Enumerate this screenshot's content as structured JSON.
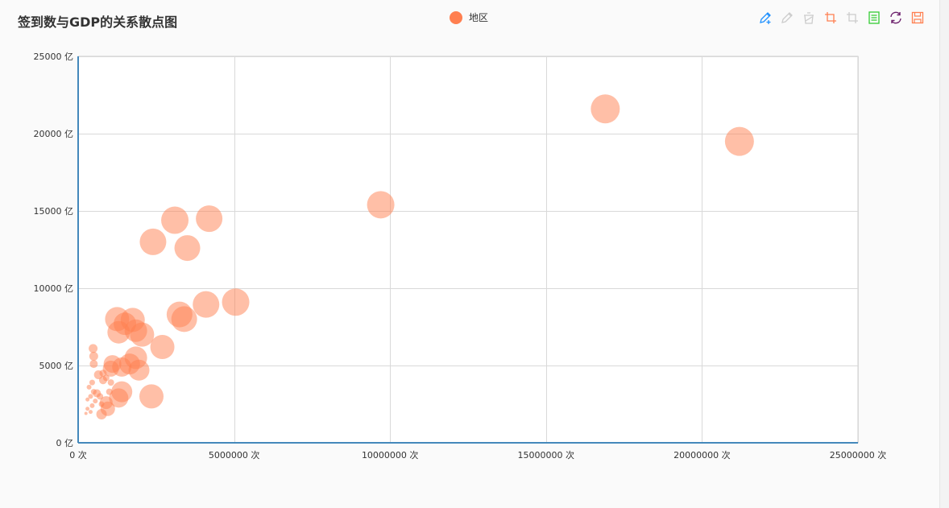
{
  "title": "签到数与GDP的关系散点图",
  "legend": {
    "label": "地区",
    "color": "#ff7f50"
  },
  "toolbox": {
    "items": [
      {
        "name": "mark-icon",
        "color": "#1e90ff",
        "enabled": true
      },
      {
        "name": "mark-undo-icon",
        "color": "#cccccc",
        "enabled": false
      },
      {
        "name": "mark-clear-icon",
        "color": "#cccccc",
        "enabled": false
      },
      {
        "name": "zoom-icon",
        "color": "#ff7f50",
        "enabled": true
      },
      {
        "name": "zoom-back-icon",
        "color": "#cccccc",
        "enabled": false
      },
      {
        "name": "data-view-icon",
        "color": "#32cd32",
        "enabled": true
      },
      {
        "name": "restore-icon",
        "color": "#6b1f6b",
        "enabled": true
      },
      {
        "name": "save-image-icon",
        "color": "#ff7f50",
        "enabled": true
      }
    ]
  },
  "chart_data": {
    "type": "scatter",
    "title": "签到数与GDP的关系散点图",
    "series": [
      {
        "name": "地区",
        "color": "#ff7f50",
        "points": [
          [
            21200000,
            19500,
            36
          ],
          [
            16900000,
            21600,
            36
          ],
          [
            9700000,
            15400,
            34
          ],
          [
            4200000,
            14500,
            33
          ],
          [
            3100000,
            14400,
            34
          ],
          [
            2400000,
            13000,
            33
          ],
          [
            3500000,
            12600,
            32
          ],
          [
            5050000,
            9100,
            34
          ],
          [
            4100000,
            8950,
            33
          ],
          [
            3250000,
            8300,
            32
          ],
          [
            3400000,
            8000,
            32
          ],
          [
            1250000,
            8000,
            30
          ],
          [
            1750000,
            7950,
            30
          ],
          [
            1500000,
            7700,
            28
          ],
          [
            1850000,
            7250,
            28
          ],
          [
            2050000,
            7000,
            30
          ],
          [
            1300000,
            7150,
            28
          ],
          [
            2700000,
            6200,
            30
          ],
          [
            1850000,
            5500,
            28
          ],
          [
            1650000,
            5100,
            26
          ],
          [
            1100000,
            5100,
            22
          ],
          [
            1400000,
            4900,
            24
          ],
          [
            1950000,
            4700,
            26
          ],
          [
            1050000,
            4800,
            20
          ],
          [
            1400000,
            3300,
            26
          ],
          [
            2350000,
            3000,
            30
          ],
          [
            1300000,
            2900,
            24
          ],
          [
            900000,
            2600,
            16
          ],
          [
            950000,
            2200,
            18
          ],
          [
            750000,
            1850,
            13
          ],
          [
            600000,
            3200,
            10
          ],
          [
            480000,
            6100,
            11
          ],
          [
            500000,
            5600,
            11
          ],
          [
            500000,
            5100,
            10
          ],
          [
            650000,
            4400,
            11
          ],
          [
            800000,
            4500,
            9
          ],
          [
            800000,
            4050,
            10
          ],
          [
            900000,
            4200,
            8
          ],
          [
            1050000,
            3900,
            8
          ],
          [
            450000,
            3900,
            7
          ],
          [
            350000,
            3600,
            6
          ],
          [
            500000,
            3300,
            7
          ],
          [
            700000,
            3000,
            8
          ],
          [
            1000000,
            3300,
            8
          ],
          [
            400000,
            3000,
            6
          ],
          [
            300000,
            2800,
            5
          ],
          [
            550000,
            2700,
            6
          ],
          [
            750000,
            2500,
            7
          ],
          [
            450000,
            2400,
            6
          ],
          [
            300000,
            2200,
            5
          ],
          [
            400000,
            2000,
            5
          ],
          [
            250000,
            1900,
            4
          ]
        ]
      }
    ],
    "xlim": [
      0,
      25000000
    ],
    "ylim": [
      0,
      25000
    ],
    "x_ticks": [
      {
        "value": 0,
        "label": "0 次"
      },
      {
        "value": 5000000,
        "label": "5000000 次"
      },
      {
        "value": 10000000,
        "label": "10000000 次"
      },
      {
        "value": 15000000,
        "label": "15000000 次"
      },
      {
        "value": 20000000,
        "label": "20000000 次"
      },
      {
        "value": 25000000,
        "label": "25000000 次"
      }
    ],
    "y_ticks": [
      {
        "value": 0,
        "label": "0 亿"
      },
      {
        "value": 5000,
        "label": "5000 亿"
      },
      {
        "value": 10000,
        "label": "10000 亿"
      },
      {
        "value": 15000,
        "label": "15000 亿"
      },
      {
        "value": 20000,
        "label": "20000 亿"
      },
      {
        "value": 25000,
        "label": "25000 亿"
      }
    ],
    "grid": true,
    "legend_position": "top-center"
  }
}
